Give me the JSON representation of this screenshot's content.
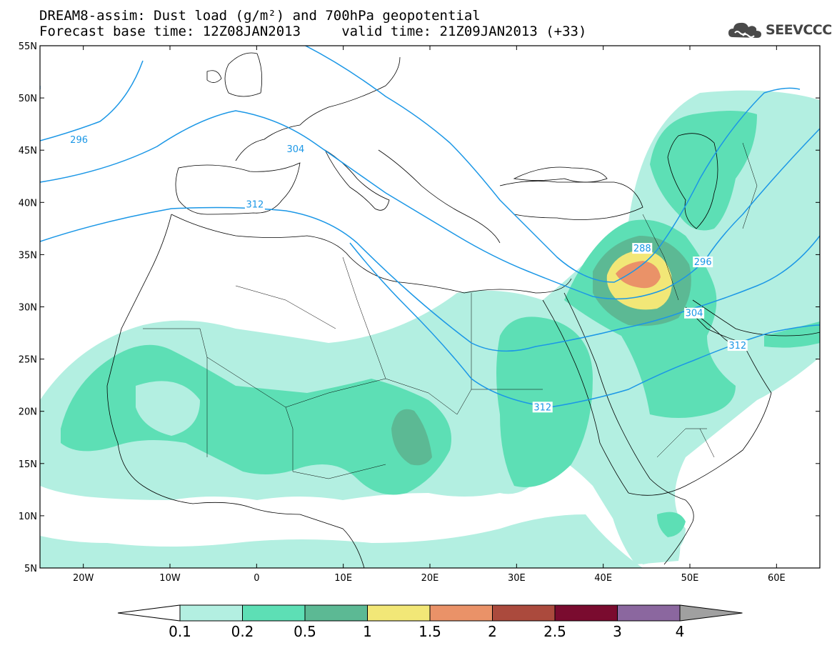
{
  "header": {
    "title_line1": "DREAM8-assim: Dust load (g/m²) and 700hPa geopotential",
    "title_line2": "Forecast base time: 12Z08JAN2013     valid time: 21Z09JAN2013 (+33)",
    "logo_text": "SEEVCCC"
  },
  "map": {
    "lon_range": [
      -25,
      65
    ],
    "lat_range": [
      5,
      55
    ],
    "lat_ticks": [
      "55N",
      "50N",
      "45N",
      "40N",
      "35N",
      "30N",
      "25N",
      "20N",
      "15N",
      "10N",
      "5N"
    ],
    "lon_ticks": [
      "20W",
      "10W",
      "0",
      "10E",
      "20E",
      "30E",
      "40E",
      "50E",
      "60E"
    ],
    "contour_labels": [
      "296",
      "304",
      "312",
      "288",
      "296",
      "304",
      "312",
      "312"
    ],
    "contour_color": "#1b97e6"
  },
  "legend": {
    "labels": [
      "0.1",
      "0.2",
      "0.5",
      "1",
      "1.5",
      "2",
      "2.5",
      "3",
      "4"
    ],
    "colors": [
      "#b3efe1",
      "#5ddfb5",
      "#5cb994",
      "#f2e777",
      "#ea9268",
      "#ab4a3d",
      "#7a0b2f",
      "#8b679f",
      "#a0a0a0"
    ]
  }
}
